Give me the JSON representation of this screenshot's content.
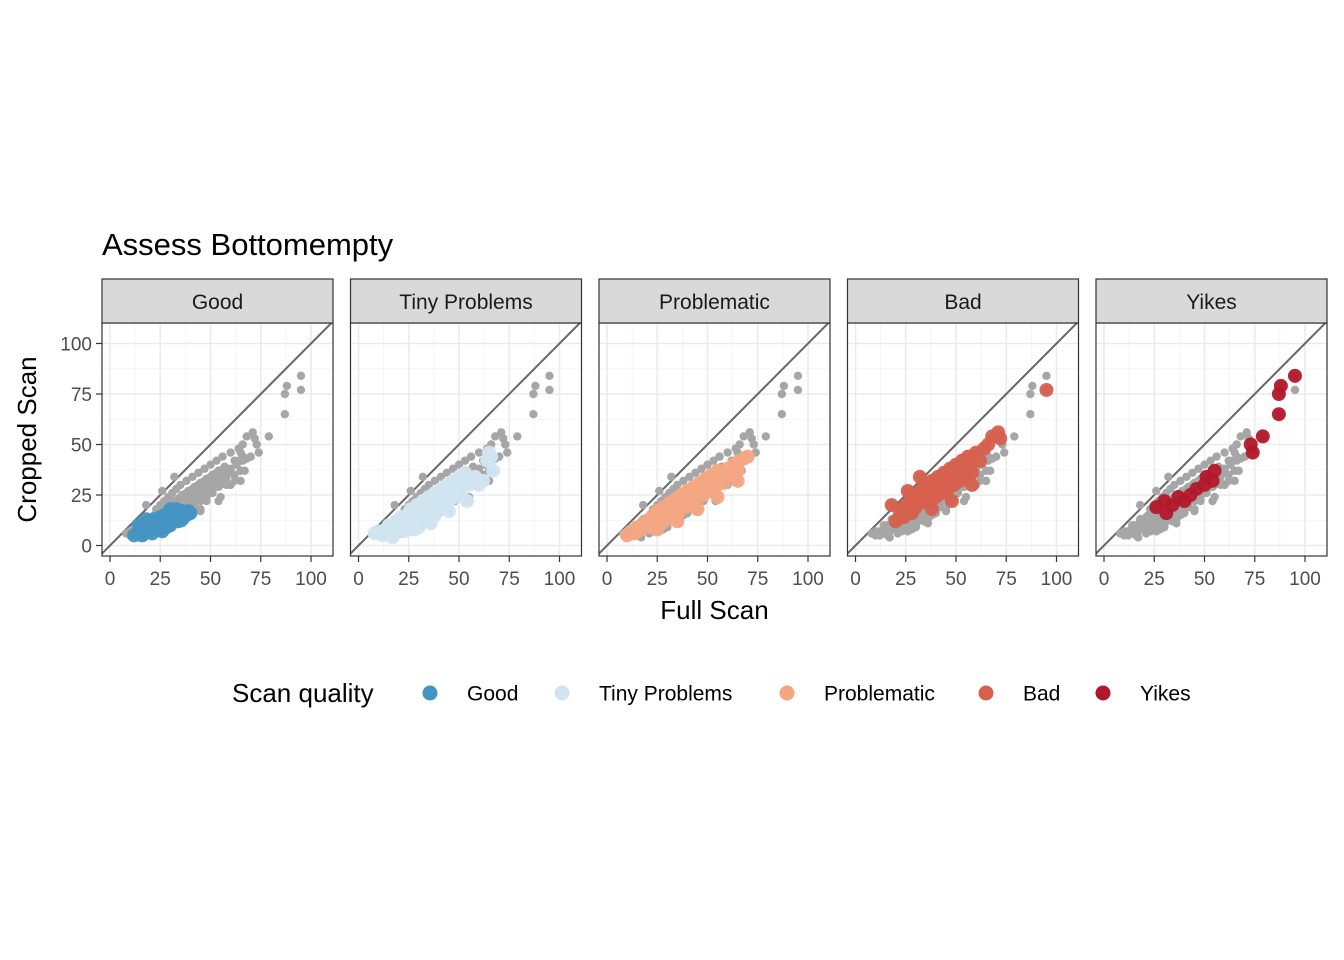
{
  "chart_data": {
    "type": "scatter",
    "title": "Assess Bottomempty",
    "xlabel": "Full Scan",
    "ylabel": "Cropped Scan",
    "xlim": [
      0,
      100
    ],
    "ylim": [
      0,
      100
    ],
    "x_ticks": [
      "0",
      "25",
      "50",
      "75",
      "100"
    ],
    "y_ticks": [
      "0",
      "25",
      "50",
      "75",
      "100"
    ],
    "grid": true,
    "reference_line": "y = x",
    "background_points_color": "#a6a6a6",
    "legend": {
      "title": "Scan quality",
      "position": "bottom",
      "items": [
        {
          "label": "Good",
          "color": "#4393c3"
        },
        {
          "label": "Tiny Problems",
          "color": "#d1e5f0"
        },
        {
          "label": "Problematic",
          "color": "#f4a582"
        },
        {
          "label": "Bad",
          "color": "#d6604d"
        },
        {
          "label": "Yikes",
          "color": "#b2182b"
        }
      ]
    },
    "facets": [
      {
        "label": "Good",
        "color": "#4393c3",
        "points": [
          [
            12,
            5
          ],
          [
            14,
            6
          ],
          [
            15,
            8
          ],
          [
            16,
            10
          ],
          [
            17,
            7
          ],
          [
            18,
            9
          ],
          [
            19,
            11
          ],
          [
            20,
            8
          ],
          [
            20,
            12
          ],
          [
            21,
            10
          ],
          [
            22,
            9
          ],
          [
            22,
            13
          ],
          [
            23,
            11
          ],
          [
            24,
            12
          ],
          [
            24,
            8
          ],
          [
            25,
            14
          ],
          [
            25,
            10
          ],
          [
            26,
            12
          ],
          [
            27,
            15
          ],
          [
            27,
            11
          ],
          [
            28,
            13
          ],
          [
            28,
            9
          ],
          [
            29,
            16
          ],
          [
            29,
            12
          ],
          [
            30,
            14
          ],
          [
            30,
            10
          ],
          [
            31,
            15
          ],
          [
            31,
            12
          ],
          [
            32,
            17
          ],
          [
            32,
            13
          ],
          [
            33,
            14
          ],
          [
            34,
            16
          ],
          [
            34,
            12
          ],
          [
            35,
            15
          ],
          [
            36,
            17
          ],
          [
            36,
            13
          ],
          [
            37,
            16
          ],
          [
            38,
            15
          ],
          [
            39,
            17
          ],
          [
            40,
            16
          ],
          [
            18,
            13
          ],
          [
            21,
            6
          ],
          [
            26,
            7
          ],
          [
            14,
            10
          ],
          [
            16,
            5
          ],
          [
            22,
            11
          ],
          [
            33,
            18
          ],
          [
            30,
            18
          ]
        ]
      },
      {
        "label": "Tiny Problems",
        "color": "#d1e5f0",
        "points": [
          [
            8,
            6
          ],
          [
            10,
            7
          ],
          [
            12,
            5
          ],
          [
            14,
            8
          ],
          [
            15,
            10
          ],
          [
            16,
            6
          ],
          [
            18,
            9
          ],
          [
            19,
            12
          ],
          [
            20,
            8
          ],
          [
            21,
            14
          ],
          [
            22,
            11
          ],
          [
            23,
            7
          ],
          [
            24,
            13
          ],
          [
            25,
            16
          ],
          [
            25,
            10
          ],
          [
            26,
            18
          ],
          [
            27,
            12
          ],
          [
            28,
            15
          ],
          [
            29,
            20
          ],
          [
            30,
            14
          ],
          [
            30,
            9
          ],
          [
            31,
            17
          ],
          [
            32,
            22
          ],
          [
            33,
            16
          ],
          [
            34,
            19
          ],
          [
            35,
            24
          ],
          [
            35,
            13
          ],
          [
            36,
            18
          ],
          [
            37,
            21
          ],
          [
            38,
            26
          ],
          [
            38,
            15
          ],
          [
            39,
            20
          ],
          [
            40,
            23
          ],
          [
            41,
            28
          ],
          [
            42,
            19
          ],
          [
            43,
            25
          ],
          [
            44,
            30
          ],
          [
            45,
            22
          ],
          [
            46,
            27
          ],
          [
            47,
            32
          ],
          [
            48,
            24
          ],
          [
            49,
            29
          ],
          [
            50,
            34
          ],
          [
            51,
            26
          ],
          [
            52,
            31
          ],
          [
            53,
            36
          ],
          [
            55,
            30
          ],
          [
            56,
            33
          ],
          [
            58,
            34
          ],
          [
            60,
            30
          ],
          [
            62,
            32
          ],
          [
            64,
            42
          ],
          [
            65,
            46
          ],
          [
            66,
            44
          ],
          [
            67,
            37
          ],
          [
            17,
            4
          ],
          [
            28,
            8
          ],
          [
            36,
            11
          ],
          [
            45,
            17
          ],
          [
            54,
            22
          ]
        ]
      },
      {
        "label": "Problematic",
        "color": "#f4a582",
        "points": [
          [
            10,
            5
          ],
          [
            12,
            7
          ],
          [
            14,
            6
          ],
          [
            15,
            9
          ],
          [
            17,
            8
          ],
          [
            18,
            11
          ],
          [
            20,
            10
          ],
          [
            21,
            13
          ],
          [
            22,
            9
          ],
          [
            23,
            15
          ],
          [
            24,
            12
          ],
          [
            25,
            17
          ],
          [
            26,
            14
          ],
          [
            27,
            11
          ],
          [
            28,
            19
          ],
          [
            29,
            16
          ],
          [
            30,
            13
          ],
          [
            31,
            21
          ],
          [
            32,
            18
          ],
          [
            33,
            15
          ],
          [
            34,
            23
          ],
          [
            35,
            20
          ],
          [
            36,
            17
          ],
          [
            37,
            25
          ],
          [
            38,
            22
          ],
          [
            39,
            19
          ],
          [
            40,
            27
          ],
          [
            41,
            24
          ],
          [
            42,
            21
          ],
          [
            43,
            29
          ],
          [
            44,
            26
          ],
          [
            45,
            23
          ],
          [
            46,
            31
          ],
          [
            47,
            28
          ],
          [
            48,
            25
          ],
          [
            49,
            33
          ],
          [
            50,
            30
          ],
          [
            51,
            27
          ],
          [
            52,
            35
          ],
          [
            53,
            32
          ],
          [
            54,
            29
          ],
          [
            55,
            37
          ],
          [
            56,
            34
          ],
          [
            58,
            31
          ],
          [
            59,
            36
          ],
          [
            60,
            38
          ],
          [
            62,
            35
          ],
          [
            63,
            40
          ],
          [
            65,
            37
          ],
          [
            66,
            42
          ],
          [
            68,
            43
          ],
          [
            70,
            44
          ],
          [
            45,
            18
          ],
          [
            55,
            24
          ],
          [
            35,
            12
          ],
          [
            25,
            8
          ],
          [
            65,
            32
          ]
        ]
      },
      {
        "label": "Bad",
        "color": "#d6604d",
        "points": [
          [
            20,
            12
          ],
          [
            22,
            15
          ],
          [
            23,
            18
          ],
          [
            24,
            14
          ],
          [
            25,
            20
          ],
          [
            26,
            17
          ],
          [
            27,
            22
          ],
          [
            28,
            16
          ],
          [
            29,
            24
          ],
          [
            30,
            19
          ],
          [
            31,
            26
          ],
          [
            32,
            21
          ],
          [
            33,
            28
          ],
          [
            34,
            23
          ],
          [
            35,
            30
          ],
          [
            36,
            25
          ],
          [
            37,
            22
          ],
          [
            38,
            32
          ],
          [
            39,
            27
          ],
          [
            40,
            24
          ],
          [
            41,
            34
          ],
          [
            42,
            29
          ],
          [
            43,
            26
          ],
          [
            44,
            36
          ],
          [
            45,
            31
          ],
          [
            46,
            28
          ],
          [
            47,
            38
          ],
          [
            48,
            33
          ],
          [
            49,
            30
          ],
          [
            50,
            40
          ],
          [
            51,
            35
          ],
          [
            52,
            32
          ],
          [
            53,
            42
          ],
          [
            54,
            37
          ],
          [
            55,
            34
          ],
          [
            56,
            44
          ],
          [
            57,
            39
          ],
          [
            58,
            36
          ],
          [
            60,
            46
          ],
          [
            62,
            42
          ],
          [
            64,
            48
          ],
          [
            66,
            50
          ],
          [
            68,
            54
          ],
          [
            71,
            56
          ],
          [
            72,
            53
          ],
          [
            95,
            77
          ],
          [
            26,
            27
          ],
          [
            38,
            18
          ],
          [
            48,
            22
          ],
          [
            58,
            30
          ],
          [
            18,
            20
          ],
          [
            32,
            34
          ]
        ]
      },
      {
        "label": "Yikes",
        "color": "#b2182b",
        "points": [
          [
            26,
            19
          ],
          [
            30,
            22
          ],
          [
            31,
            16
          ],
          [
            34,
            20
          ],
          [
            37,
            24
          ],
          [
            40,
            22
          ],
          [
            43,
            25
          ],
          [
            46,
            28
          ],
          [
            50,
            30
          ],
          [
            51,
            34
          ],
          [
            54,
            32
          ],
          [
            55,
            37
          ],
          [
            73,
            50
          ],
          [
            74,
            46
          ],
          [
            79,
            54
          ],
          [
            87,
            65
          ],
          [
            87,
            75
          ],
          [
            88,
            79
          ],
          [
            95,
            84
          ]
        ]
      }
    ]
  }
}
